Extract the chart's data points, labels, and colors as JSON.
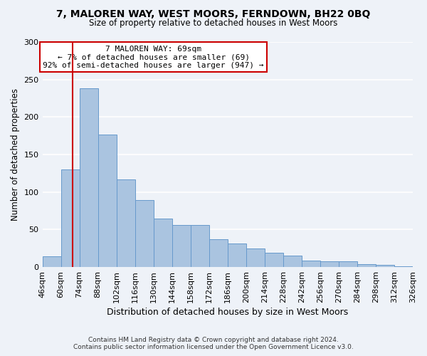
{
  "title": "7, MALOREN WAY, WEST MOORS, FERNDOWN, BH22 0BQ",
  "subtitle": "Size of property relative to detached houses in West Moors",
  "bar_values": [
    14,
    130,
    238,
    177,
    117,
    89,
    65,
    56,
    56,
    37,
    31,
    25,
    19,
    15,
    9,
    8,
    8,
    4,
    3,
    1
  ],
  "bin_edges": [
    46,
    60,
    74,
    88,
    102,
    116,
    130,
    144,
    158,
    172,
    186,
    200,
    214,
    228,
    242,
    256,
    270,
    284,
    298,
    312,
    326
  ],
  "bin_labels": [
    "46sqm",
    "60sqm",
    "74sqm",
    "88sqm",
    "102sqm",
    "116sqm",
    "130sqm",
    "144sqm",
    "158sqm",
    "172sqm",
    "186sqm",
    "200sqm",
    "214sqm",
    "228sqm",
    "242sqm",
    "256sqm",
    "270sqm",
    "284sqm",
    "298sqm",
    "312sqm",
    "326sqm"
  ],
  "bar_color": "#aac4e0",
  "bar_edge_color": "#6699cc",
  "ylabel": "Number of detached properties",
  "xlabel": "Distribution of detached houses by size in West Moors",
  "ylim": [
    0,
    300
  ],
  "yticks": [
    0,
    50,
    100,
    150,
    200,
    250,
    300
  ],
  "vline_x": 69,
  "vline_color": "#cc0000",
  "annotation_title": "7 MALOREN WAY: 69sqm",
  "annotation_line1": "← 7% of detached houses are smaller (69)",
  "annotation_line2": "92% of semi-detached houses are larger (947) →",
  "annotation_box_color": "#ffffff",
  "annotation_box_edge": "#cc0000",
  "footer1": "Contains HM Land Registry data © Crown copyright and database right 2024.",
  "footer2": "Contains public sector information licensed under the Open Government Licence v3.0.",
  "background_color": "#eef2f8",
  "grid_color": "#ffffff"
}
